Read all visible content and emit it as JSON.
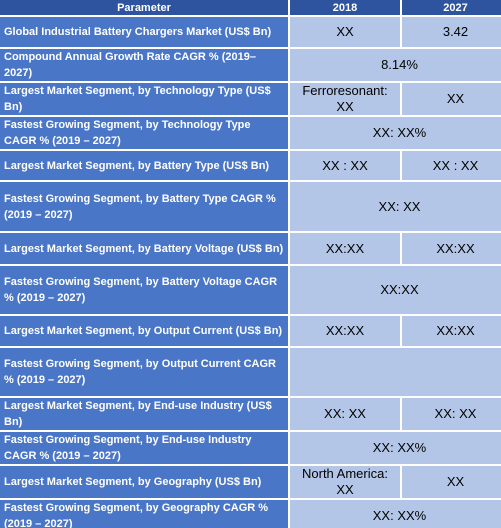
{
  "table": {
    "header": [
      "Parameter",
      "2018",
      "2027"
    ],
    "rows": [
      {
        "label": "Global Industrial Battery Chargers Market (US$ Bn)",
        "values": [
          "XX",
          "3.42"
        ]
      },
      {
        "label": "Compound Annual Growth Rate CAGR % (2019–2027)",
        "merged": "8.14%"
      },
      {
        "label": "Largest Market Segment, by Technology Type (US$ Bn)",
        "values": [
          "Ferroresonant: XX",
          "XX"
        ]
      },
      {
        "label": "Fastest Growing Segment, by Technology Type CAGR % (2019 – 2027)",
        "merged": "XX: XX%"
      },
      {
        "label": "Largest Market Segment, by Battery Type (US$ Bn)",
        "values": [
          "XX : XX",
          "XX : XX"
        ]
      },
      {
        "label": "Fastest Growing Segment, by Battery Type CAGR % (2019 – 2027)",
        "merged": "XX: XX"
      },
      {
        "label": "Largest Market Segment, by Battery Voltage (US$ Bn)",
        "values": [
          "XX:XX",
          "XX:XX"
        ]
      },
      {
        "label": "Fastest Growing Segment, by Battery Voltage CAGR % (2019 – 2027)",
        "merged": "XX:XX"
      },
      {
        "label": "Largest Market Segment, by Output Current (US$ Bn)",
        "values": [
          "XX:XX",
          "XX:XX"
        ]
      },
      {
        "label": "Fastest Growing Segment, by Output Current CAGR % (2019 – 2027)"
      },
      {
        "label": "Largest Market Segment, by End-use Industry (US$ Bn)",
        "values": [
          "XX: XX",
          "XX: XX"
        ]
      },
      {
        "label": "Fastest Growing Segment, by End-use Industry CAGR % (2019 – 2027)",
        "merged": "XX: XX%"
      },
      {
        "label": "Largest Market Segment, by Geography (US$ Bn)",
        "values": [
          "North America: XX",
          "XX"
        ]
      },
      {
        "label": "Fastest Growing Segment, by Geography CAGR % (2019 – 2027)",
        "merged": "XX: XX%"
      }
    ]
  }
}
